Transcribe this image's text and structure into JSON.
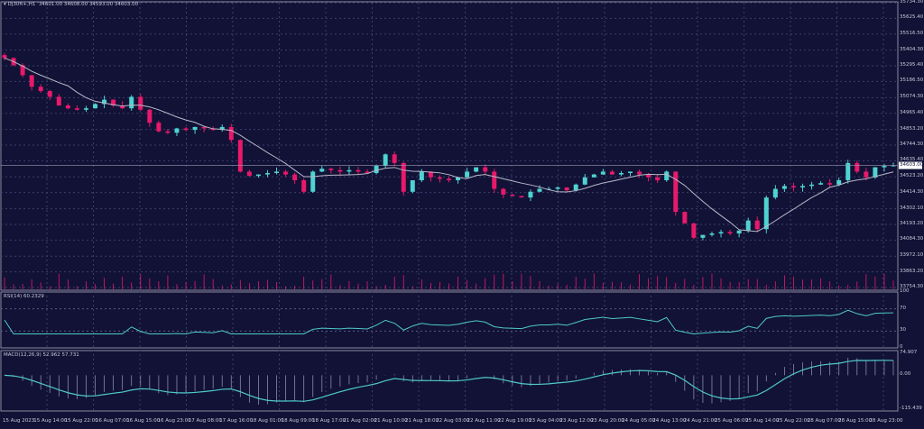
{
  "header": {
    "symbol": "DJ30ft+,H1",
    "ohlc": "34601.00 34608.00 34593.00 34603.00"
  },
  "colors": {
    "bg": "#111236",
    "bull": "#4fd2d0",
    "bear": "#e8196a",
    "ma": "#b8b8c8",
    "grid": "#3c3e6a",
    "rsi": "#4fc9c9",
    "macd": "#4fc9c9"
  },
  "chart_data": [
    {
      "type": "candlestick",
      "title": "DJ30ft+,H1",
      "ylim": [
        33754.3,
        35734.3
      ],
      "y_ticks": [
        "35734.30",
        "35625.40",
        "35516.50",
        "35404.30",
        "35295.40",
        "35186.50",
        "35074.30",
        "34965.40",
        "34853.20",
        "34744.30",
        "34635.40",
        "34523.20",
        "34414.30",
        "34302.10",
        "34193.20",
        "34084.30",
        "33972.10",
        "33863.20",
        "33754.30"
      ],
      "current_price": "34603.00",
      "x_ticks": [
        "15 Aug 2023",
        "15 Aug 14:00",
        "15 Aug 22:00",
        "16 Aug 07:00",
        "16 Aug 15:00",
        "16 Aug 23:00",
        "17 Aug 08:00",
        "17 Aug 16:00",
        "18 Aug 01:00",
        "18 Aug 09:00",
        "18 Aug 17:00",
        "21 Aug 02:00",
        "21 Aug 10:00",
        "21 Aug 18:00",
        "22 Aug 03:00",
        "22 Aug 11:00",
        "22 Aug 19:00",
        "23 Aug 04:00",
        "23 Aug 12:00",
        "23 Aug 20:00",
        "24 Aug 05:00",
        "24 Aug 13:00",
        "24 Aug 21:00",
        "25 Aug 06:00",
        "25 Aug 14:00",
        "25 Aug 22:00",
        "28 Aug 07:00",
        "28 Aug 15:00",
        "28 Aug 23:00"
      ],
      "closes": [
        35350,
        35300,
        35230,
        35150,
        35120,
        35080,
        35020,
        35000,
        34990,
        35000,
        35030,
        35060,
        35020,
        35000,
        35080,
        34990,
        34900,
        34840,
        34830,
        34860,
        34850,
        34870,
        34860,
        34850,
        34870,
        34780,
        34560,
        34530,
        34540,
        34550,
        34560,
        34540,
        34500,
        34420,
        34560,
        34580,
        34570,
        34560,
        34570,
        34560,
        34550,
        34600,
        34680,
        34620,
        34420,
        34500,
        34560,
        34520,
        34510,
        34500,
        34520,
        34560,
        34590,
        34560,
        34440,
        34400,
        34390,
        34380,
        34420,
        34440,
        34440,
        34450,
        34430,
        34470,
        34520,
        34540,
        34560,
        34540,
        34550,
        34560,
        34540,
        34520,
        34500,
        34560,
        34280,
        34200,
        34100,
        34120,
        34130,
        34140,
        34130,
        34150,
        34220,
        34160,
        34380,
        34440,
        34460,
        34450,
        34460,
        34470,
        34480,
        34470,
        34500,
        34620,
        34560,
        34520,
        34590,
        34600,
        34603
      ]
    },
    {
      "type": "line",
      "title": "RSI(14) 60.2329",
      "ylim": [
        0,
        100
      ],
      "y_ticks": [
        "100",
        "70",
        "30",
        "0"
      ]
    },
    {
      "type": "line",
      "title": "MACD(12,26,9) 52.962 57.731",
      "ylim": [
        -115.439,
        74.907
      ],
      "y_ticks": [
        "74.907",
        "0.00",
        "-115.439"
      ]
    }
  ]
}
